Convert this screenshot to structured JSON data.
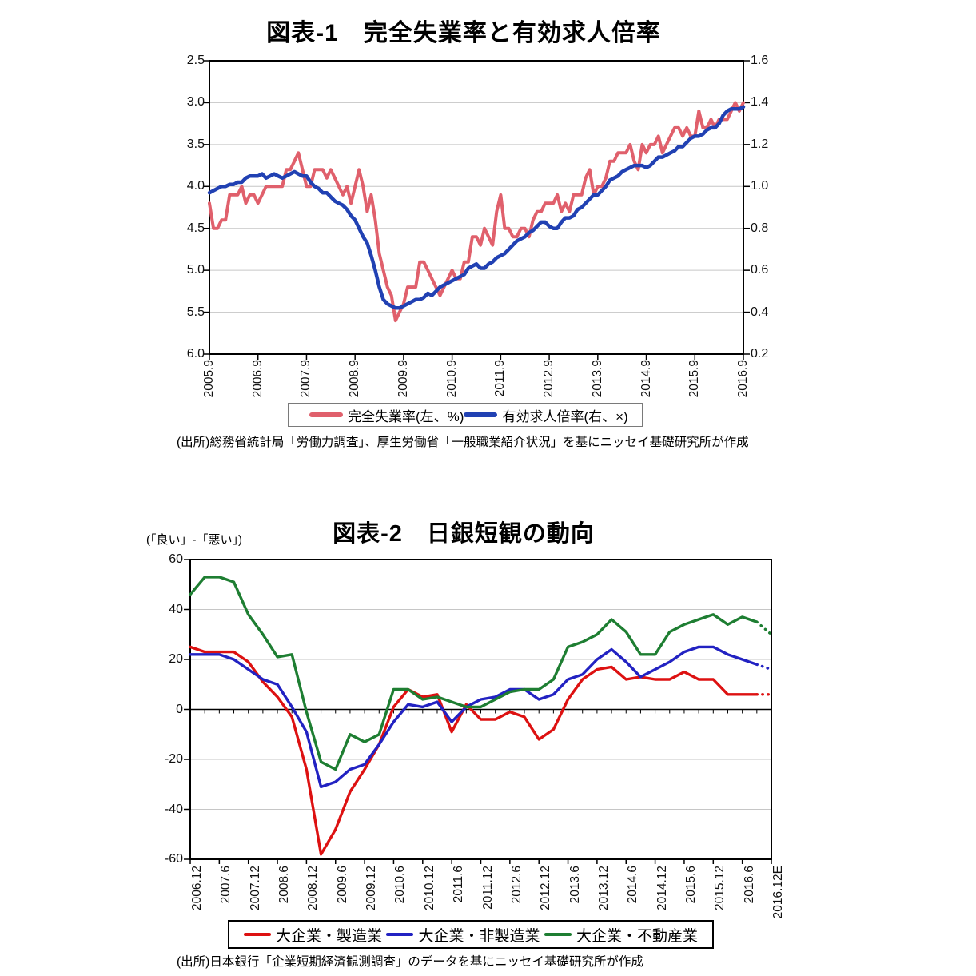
{
  "page_bg": "#ffffff",
  "chart_data": [
    {
      "type": "line",
      "title": "図表-1　完全失業率と有効求人倍率",
      "source": "(出所)総務省統計局「労働力調査」、厚生労働省「一般職業紹介状況」を基にニッセイ基礎研究所が作成",
      "legend_position": "bottom",
      "grid": "horizontal",
      "x_start": "2005.9",
      "x_end": "2016.9",
      "frequency": "monthly",
      "x_tick_labels": [
        "2005.9",
        "2006.9",
        "2007.9",
        "2008.9",
        "2009.9",
        "2010.9",
        "2011.9",
        "2012.9",
        "2013.9",
        "2014.9",
        "2015.9",
        "2016.9"
      ],
      "left_axis": {
        "min": 2.5,
        "max": 6.0,
        "inverted": true,
        "ticks": [
          "2.5",
          "3.0",
          "3.5",
          "4.0",
          "4.5",
          "5.0",
          "5.5",
          "6.0"
        ]
      },
      "right_axis": {
        "min": 0.2,
        "max": 1.6,
        "ticks": [
          "1.6",
          "1.4",
          "1.2",
          "1.0",
          "0.8",
          "0.6",
          "0.4",
          "0.2"
        ]
      },
      "series": [
        {
          "name": "完全失業率(左、%)",
          "axis": "left",
          "color": "#E0606C",
          "width": 4,
          "values": [
            4.2,
            4.5,
            4.5,
            4.4,
            4.4,
            4.1,
            4.1,
            4.1,
            4.0,
            4.2,
            4.1,
            4.1,
            4.2,
            4.1,
            4.0,
            4.0,
            4.0,
            4.0,
            4.0,
            3.8,
            3.8,
            3.7,
            3.6,
            3.8,
            4.0,
            4.0,
            3.8,
            3.8,
            3.8,
            3.9,
            3.8,
            3.9,
            4.0,
            4.1,
            4.0,
            4.2,
            4.0,
            3.8,
            4.0,
            4.3,
            4.1,
            4.4,
            4.8,
            5.0,
            5.2,
            5.3,
            5.6,
            5.5,
            5.4,
            5.2,
            5.2,
            5.2,
            4.9,
            4.9,
            5.0,
            5.1,
            5.2,
            5.3,
            5.2,
            5.1,
            5.0,
            5.1,
            5.1,
            4.9,
            4.9,
            4.6,
            4.6,
            4.7,
            4.5,
            4.6,
            4.7,
            4.3,
            4.1,
            4.5,
            4.5,
            4.6,
            4.6,
            4.5,
            4.5,
            4.6,
            4.4,
            4.3,
            4.3,
            4.2,
            4.2,
            4.2,
            4.1,
            4.3,
            4.2,
            4.3,
            4.1,
            4.1,
            4.1,
            3.9,
            3.8,
            4.1,
            4.0,
            4.0,
            3.9,
            3.7,
            3.7,
            3.6,
            3.6,
            3.6,
            3.5,
            3.7,
            3.8,
            3.5,
            3.6,
            3.5,
            3.5,
            3.4,
            3.6,
            3.5,
            3.4,
            3.3,
            3.3,
            3.4,
            3.3,
            3.4,
            3.4,
            3.1,
            3.3,
            3.3,
            3.2,
            3.3,
            3.2,
            3.2,
            3.2,
            3.1,
            3.0,
            3.1,
            3.0
          ]
        },
        {
          "name": "有効求人倍率(右、×)",
          "axis": "right",
          "color": "#2141B3",
          "width": 4.5,
          "values": [
            0.97,
            0.98,
            0.99,
            1.0,
            1.0,
            1.01,
            1.01,
            1.02,
            1.02,
            1.04,
            1.05,
            1.05,
            1.05,
            1.06,
            1.04,
            1.05,
            1.06,
            1.05,
            1.04,
            1.05,
            1.06,
            1.07,
            1.06,
            1.05,
            1.05,
            1.02,
            1.0,
            0.99,
            0.97,
            0.97,
            0.95,
            0.93,
            0.92,
            0.91,
            0.89,
            0.86,
            0.84,
            0.8,
            0.76,
            0.73,
            0.67,
            0.6,
            0.52,
            0.46,
            0.44,
            0.43,
            0.42,
            0.42,
            0.43,
            0.44,
            0.45,
            0.46,
            0.46,
            0.47,
            0.49,
            0.48,
            0.5,
            0.52,
            0.53,
            0.54,
            0.55,
            0.56,
            0.57,
            0.58,
            0.61,
            0.62,
            0.63,
            0.61,
            0.61,
            0.63,
            0.64,
            0.66,
            0.67,
            0.68,
            0.7,
            0.72,
            0.74,
            0.75,
            0.76,
            0.78,
            0.79,
            0.81,
            0.83,
            0.83,
            0.81,
            0.8,
            0.8,
            0.83,
            0.85,
            0.85,
            0.86,
            0.89,
            0.9,
            0.92,
            0.94,
            0.96,
            0.96,
            0.98,
            1.0,
            1.03,
            1.04,
            1.05,
            1.07,
            1.08,
            1.09,
            1.1,
            1.1,
            1.1,
            1.09,
            1.1,
            1.12,
            1.14,
            1.14,
            1.15,
            1.16,
            1.17,
            1.19,
            1.19,
            1.21,
            1.23,
            1.24,
            1.24,
            1.25,
            1.27,
            1.28,
            1.28,
            1.3,
            1.34,
            1.36,
            1.37,
            1.37,
            1.37,
            1.38
          ]
        }
      ]
    },
    {
      "type": "line",
      "title": "図表-2　日銀短観の動向",
      "ylabel": "(「良い」-「悪い」)",
      "source": "(出所)日本銀行「企業短期経済観測調査」のデータを基にニッセイ基礎研究所が作成",
      "legend_position": "bottom",
      "grid": "horizontal",
      "frequency": "quarterly",
      "forecast_last_point": true,
      "y_axis": {
        "min": -60,
        "max": 60,
        "ticks": [
          "60",
          "40",
          "20",
          "0",
          "-20",
          "-40",
          "-60"
        ]
      },
      "x_tick_labels": [
        "2006.12",
        "2007.6",
        "2007.12",
        "2008.6",
        "2008.12",
        "2009.6",
        "2009.12",
        "2010.6",
        "2010.12",
        "2011.6",
        "2011.12",
        "2012.6",
        "2012.12",
        "2013.6",
        "2013.12",
        "2014.6",
        "2014.12",
        "2015.6",
        "2015.12",
        "2016.6",
        "2016.12E"
      ],
      "x_categories": [
        "2006.12",
        "2007.3",
        "2007.6",
        "2007.9",
        "2007.12",
        "2008.3",
        "2008.6",
        "2008.9",
        "2008.12",
        "2009.3",
        "2009.6",
        "2009.9",
        "2009.12",
        "2010.3",
        "2010.6",
        "2010.9",
        "2010.12",
        "2011.3",
        "2011.6",
        "2011.9",
        "2011.12",
        "2012.3",
        "2012.6",
        "2012.9",
        "2012.12",
        "2013.3",
        "2013.6",
        "2013.9",
        "2013.12",
        "2014.3",
        "2014.6",
        "2014.9",
        "2014.12",
        "2015.3",
        "2015.6",
        "2015.9",
        "2015.12",
        "2016.3",
        "2016.6",
        "2016.9",
        "2016.12E"
      ],
      "series": [
        {
          "name": "大企業・製造業",
          "color": "#DD1111",
          "width": 3.4,
          "values": [
            25,
            23,
            23,
            23,
            19,
            11,
            5,
            -3,
            -24,
            -58,
            -48,
            -33,
            -24,
            -14,
            1,
            8,
            5,
            6,
            -9,
            2,
            -4,
            -4,
            -1,
            -3,
            -12,
            -8,
            4,
            12,
            16,
            17,
            12,
            13,
            12,
            12,
            15,
            12,
            12,
            6,
            6,
            6,
            6
          ]
        },
        {
          "name": "大企業・非製造業",
          "color": "#2222C2",
          "width": 3.4,
          "values": [
            22,
            22,
            22,
            20,
            16,
            12,
            10,
            1,
            -9,
            -31,
            -29,
            -24,
            -22,
            -14,
            -5,
            2,
            1,
            3,
            -5,
            1,
            4,
            5,
            8,
            8,
            4,
            6,
            12,
            14,
            20,
            24,
            19,
            13,
            16,
            19,
            23,
            25,
            25,
            22,
            20,
            18,
            16
          ]
        },
        {
          "name": "大企業・不動産業",
          "color": "#1E7E32",
          "width": 3.4,
          "values": [
            46,
            53,
            53,
            51,
            38,
            30,
            21,
            22,
            -1,
            -21,
            -24,
            -10,
            -13,
            -10,
            8,
            8,
            4,
            5,
            3,
            1,
            1,
            4,
            7,
            8,
            8,
            12,
            25,
            27,
            30,
            36,
            31,
            22,
            22,
            31,
            34,
            36,
            38,
            34,
            37,
            35,
            30
          ]
        }
      ]
    }
  ]
}
